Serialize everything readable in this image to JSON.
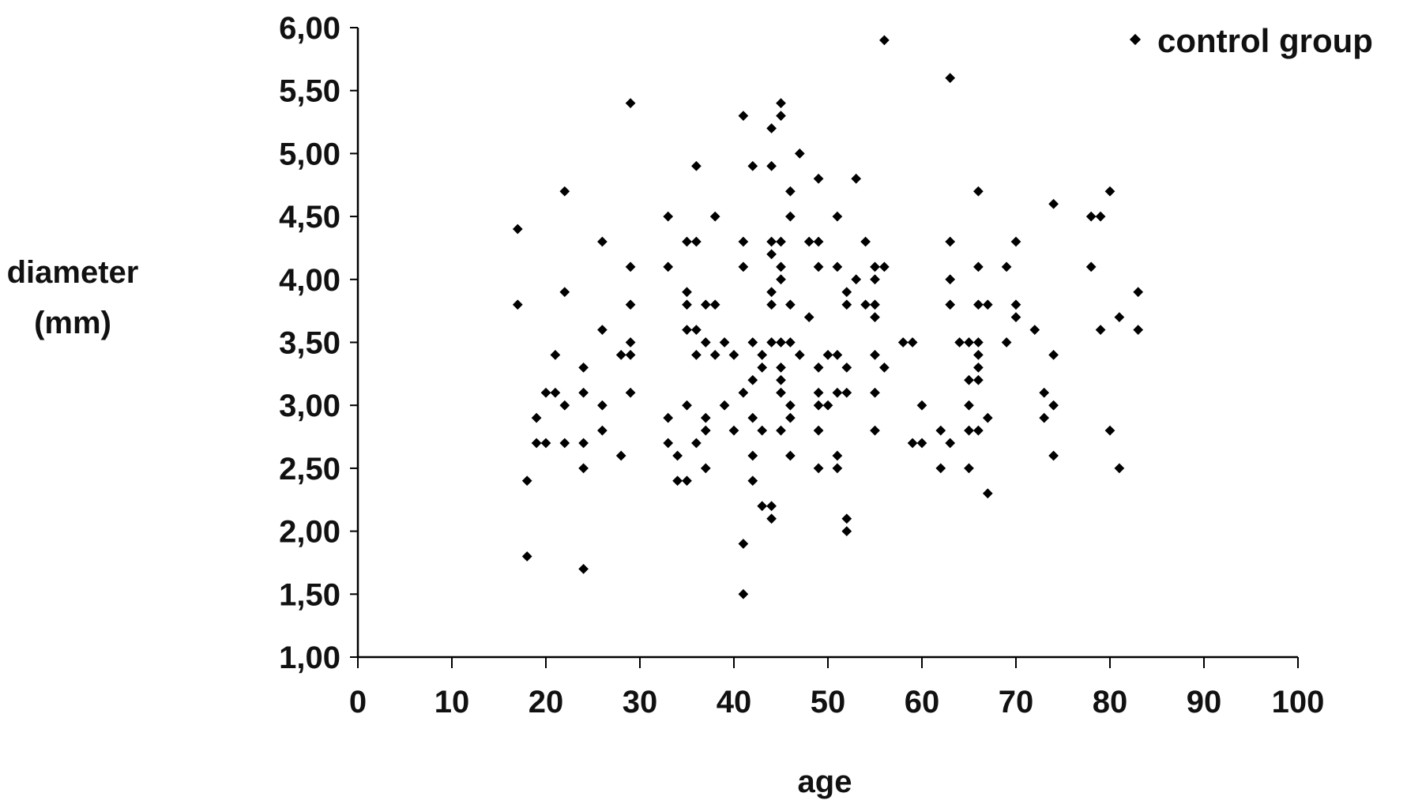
{
  "chart_data": {
    "type": "scatter",
    "title": "",
    "xlabel": "age",
    "ylabel_lines": [
      "diameter",
      "(mm)"
    ],
    "xlim": [
      0,
      100
    ],
    "ylim": [
      1.0,
      6.0
    ],
    "x_ticks": [
      0,
      10,
      20,
      30,
      40,
      50,
      60,
      70,
      80,
      90,
      100
    ],
    "x_tick_labels": [
      "0",
      "10",
      "20",
      "30",
      "40",
      "50",
      "60",
      "70",
      "80",
      "90",
      "100"
    ],
    "y_ticks": [
      1.0,
      1.5,
      2.0,
      2.5,
      3.0,
      3.5,
      4.0,
      4.5,
      5.0,
      5.5,
      6.0
    ],
    "y_tick_labels": [
      "1,00",
      "1,50",
      "2,00",
      "2,50",
      "3,00",
      "3,50",
      "4,00",
      "4,50",
      "5,00",
      "5,50",
      "6,00"
    ],
    "grid": false,
    "legend_position": "top-right",
    "marker": "diamond",
    "colors": {
      "marker": "#000000",
      "axis": "#000000",
      "text": "#111111"
    },
    "series": [
      {
        "name": "control group",
        "points": [
          [
            17,
            4.4
          ],
          [
            17,
            3.8
          ],
          [
            18,
            2.4
          ],
          [
            18,
            1.8
          ],
          [
            19,
            2.9
          ],
          [
            19,
            2.7
          ],
          [
            20,
            3.1
          ],
          [
            20,
            2.7
          ],
          [
            21,
            3.4
          ],
          [
            21,
            3.1
          ],
          [
            22,
            4.7
          ],
          [
            22,
            3.9
          ],
          [
            22,
            3.0
          ],
          [
            22,
            2.7
          ],
          [
            24,
            3.3
          ],
          [
            24,
            3.1
          ],
          [
            24,
            2.7
          ],
          [
            24,
            2.5
          ],
          [
            24,
            1.7
          ],
          [
            26,
            4.3
          ],
          [
            26,
            3.6
          ],
          [
            26,
            3.0
          ],
          [
            26,
            2.8
          ],
          [
            28,
            3.4
          ],
          [
            28,
            2.6
          ],
          [
            29,
            5.4
          ],
          [
            29,
            4.1
          ],
          [
            29,
            3.8
          ],
          [
            29,
            3.5
          ],
          [
            29,
            3.4
          ],
          [
            29,
            3.1
          ],
          [
            33,
            4.5
          ],
          [
            33,
            4.1
          ],
          [
            33,
            2.9
          ],
          [
            33,
            2.7
          ],
          [
            34,
            2.6
          ],
          [
            34,
            2.4
          ],
          [
            35,
            4.3
          ],
          [
            35,
            3.9
          ],
          [
            35,
            3.8
          ],
          [
            35,
            3.6
          ],
          [
            35,
            3.0
          ],
          [
            35,
            2.4
          ],
          [
            36,
            4.9
          ],
          [
            36,
            4.3
          ],
          [
            36,
            3.6
          ],
          [
            36,
            3.4
          ],
          [
            36,
            2.7
          ],
          [
            37,
            3.8
          ],
          [
            37,
            3.5
          ],
          [
            37,
            2.9
          ],
          [
            37,
            2.8
          ],
          [
            37,
            2.5
          ],
          [
            38,
            4.5
          ],
          [
            38,
            3.8
          ],
          [
            38,
            3.4
          ],
          [
            39,
            3.5
          ],
          [
            39,
            3.0
          ],
          [
            40,
            3.4
          ],
          [
            40,
            2.8
          ],
          [
            41,
            5.3
          ],
          [
            41,
            4.3
          ],
          [
            41,
            4.1
          ],
          [
            41,
            3.1
          ],
          [
            41,
            1.9
          ],
          [
            41,
            1.5
          ],
          [
            42,
            4.9
          ],
          [
            42,
            3.5
          ],
          [
            42,
            3.2
          ],
          [
            42,
            2.9
          ],
          [
            42,
            2.6
          ],
          [
            42,
            2.4
          ],
          [
            43,
            3.4
          ],
          [
            43,
            3.3
          ],
          [
            43,
            2.8
          ],
          [
            43,
            2.2
          ],
          [
            44,
            5.2
          ],
          [
            44,
            4.9
          ],
          [
            44,
            4.3
          ],
          [
            44,
            4.2
          ],
          [
            44,
            3.9
          ],
          [
            44,
            3.8
          ],
          [
            44,
            3.5
          ],
          [
            44,
            2.2
          ],
          [
            44,
            2.1
          ],
          [
            45,
            5.4
          ],
          [
            45,
            5.3
          ],
          [
            45,
            4.3
          ],
          [
            45,
            4.1
          ],
          [
            45,
            4.0
          ],
          [
            45,
            3.5
          ],
          [
            45,
            3.3
          ],
          [
            45,
            3.2
          ],
          [
            45,
            3.1
          ],
          [
            45,
            2.8
          ],
          [
            46,
            4.7
          ],
          [
            46,
            4.5
          ],
          [
            46,
            3.8
          ],
          [
            46,
            3.5
          ],
          [
            46,
            3.0
          ],
          [
            46,
            2.9
          ],
          [
            46,
            2.6
          ],
          [
            47,
            5.0
          ],
          [
            47,
            3.4
          ],
          [
            48,
            4.3
          ],
          [
            48,
            3.7
          ],
          [
            49,
            4.8
          ],
          [
            49,
            4.3
          ],
          [
            49,
            4.1
          ],
          [
            49,
            3.3
          ],
          [
            49,
            3.1
          ],
          [
            49,
            3.0
          ],
          [
            49,
            2.8
          ],
          [
            49,
            2.5
          ],
          [
            50,
            3.4
          ],
          [
            50,
            3.0
          ],
          [
            51,
            4.5
          ],
          [
            51,
            4.1
          ],
          [
            51,
            3.4
          ],
          [
            51,
            3.1
          ],
          [
            51,
            2.6
          ],
          [
            51,
            2.5
          ],
          [
            52,
            3.9
          ],
          [
            52,
            3.8
          ],
          [
            52,
            3.3
          ],
          [
            52,
            3.1
          ],
          [
            52,
            2.1
          ],
          [
            52,
            2.0
          ],
          [
            53,
            4.8
          ],
          [
            53,
            4.0
          ],
          [
            54,
            4.3
          ],
          [
            54,
            3.8
          ],
          [
            55,
            4.1
          ],
          [
            55,
            4.0
          ],
          [
            55,
            3.8
          ],
          [
            55,
            3.7
          ],
          [
            55,
            3.4
          ],
          [
            55,
            3.1
          ],
          [
            55,
            2.8
          ],
          [
            56,
            5.9
          ],
          [
            56,
            4.1
          ],
          [
            56,
            3.3
          ],
          [
            58,
            3.5
          ],
          [
            59,
            3.5
          ],
          [
            59,
            2.7
          ],
          [
            60,
            3.0
          ],
          [
            60,
            2.7
          ],
          [
            62,
            2.8
          ],
          [
            62,
            2.5
          ],
          [
            63,
            5.6
          ],
          [
            63,
            4.3
          ],
          [
            63,
            4.0
          ],
          [
            63,
            3.8
          ],
          [
            63,
            2.7
          ],
          [
            64,
            3.5
          ],
          [
            65,
            3.5
          ],
          [
            65,
            3.2
          ],
          [
            65,
            3.0
          ],
          [
            65,
            2.8
          ],
          [
            65,
            2.5
          ],
          [
            66,
            4.7
          ],
          [
            66,
            4.1
          ],
          [
            66,
            3.8
          ],
          [
            66,
            3.5
          ],
          [
            66,
            3.4
          ],
          [
            66,
            3.3
          ],
          [
            66,
            3.2
          ],
          [
            66,
            2.8
          ],
          [
            67,
            3.8
          ],
          [
            67,
            2.9
          ],
          [
            67,
            2.3
          ],
          [
            69,
            4.1
          ],
          [
            69,
            3.5
          ],
          [
            70,
            4.3
          ],
          [
            70,
            3.8
          ],
          [
            70,
            3.7
          ],
          [
            72,
            3.6
          ],
          [
            73,
            3.1
          ],
          [
            73,
            2.9
          ],
          [
            74,
            4.6
          ],
          [
            74,
            3.4
          ],
          [
            74,
            3.0
          ],
          [
            74,
            2.6
          ],
          [
            78,
            4.5
          ],
          [
            78,
            4.1
          ],
          [
            79,
            4.5
          ],
          [
            79,
            3.6
          ],
          [
            80,
            4.7
          ],
          [
            80,
            2.8
          ],
          [
            81,
            3.7
          ],
          [
            81,
            2.5
          ],
          [
            83,
            3.9
          ],
          [
            83,
            3.6
          ]
        ]
      }
    ]
  }
}
